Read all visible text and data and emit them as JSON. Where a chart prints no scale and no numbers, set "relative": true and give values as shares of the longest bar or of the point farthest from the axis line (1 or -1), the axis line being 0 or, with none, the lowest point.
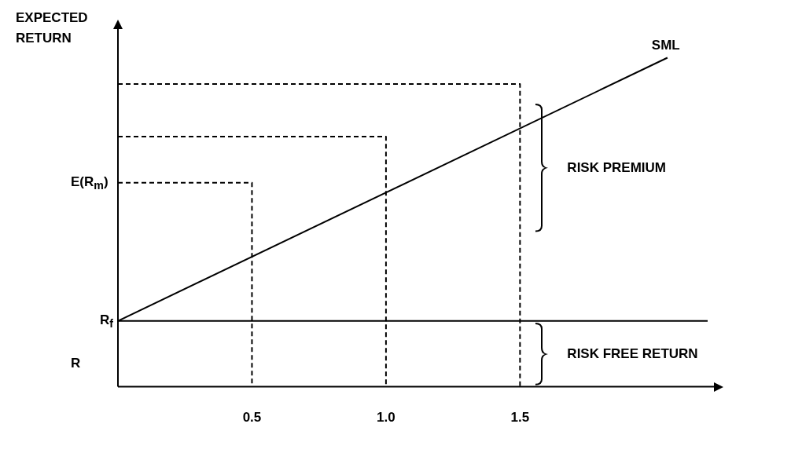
{
  "chart_data": {
    "type": "line",
    "relative": true,
    "ylabel": "EXPECTED RETURN",
    "xlim": [
      0,
      2.2
    ],
    "xticks": [
      {
        "value": 0.5,
        "label": "0.5"
      },
      {
        "value": 1.0,
        "label": "1.0"
      },
      {
        "value": 1.5,
        "label": "1.5"
      }
    ],
    "tick_labels": "x",
    "grid": false,
    "legend": false,
    "marker": "none",
    "series": [
      {
        "name": "SML",
        "color": "#000000",
        "x": [
          0,
          2.05
        ],
        "values": [
          0.2,
          1
        ]
      },
      {
        "color": "#000000",
        "line_style": "dashed",
        "x": [
          0,
          0.5,
          0.5
        ],
        "values": [
          0.62,
          0.62,
          0
        ]
      },
      {
        "color": "#000000",
        "line_style": "dashed",
        "x": [
          0,
          1.0,
          1.0
        ],
        "values": [
          0.76,
          0.76,
          0
        ]
      },
      {
        "color": "#000000",
        "line_style": "dashed",
        "x": [
          0,
          1.5,
          1.5
        ],
        "values": [
          0.92,
          0.92,
          0
        ]
      }
    ],
    "ref_lines": [
      {
        "axis": "y",
        "value": 0.2,
        "label": "R$_{f}$",
        "color": "#000000"
      }
    ],
    "annotations": [
      {
        "text": "E(R$_{m}$)",
        "x": 0,
        "y": 0.62
      },
      "R",
      "RISK PREMIUM",
      "RISK FREE RETURN"
    ]
  }
}
